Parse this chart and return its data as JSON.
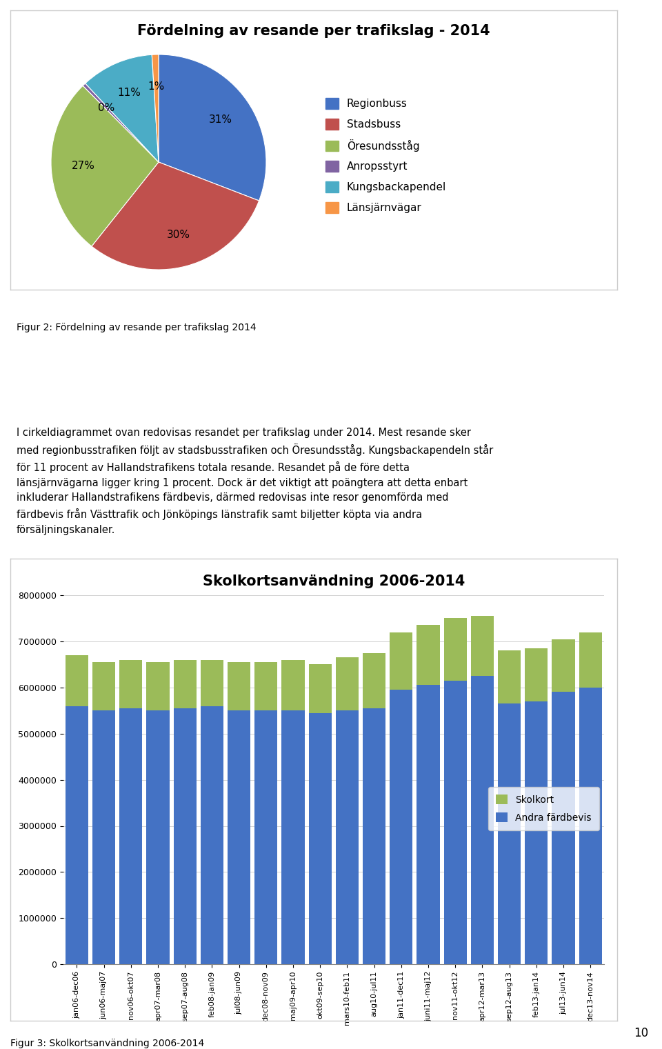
{
  "pie_title": "Fördelning av resande per trafikslag - 2014",
  "pie_labels": [
    "Regionbuss",
    "Stadsbuss",
    "Öresundsståg",
    "Anropsstyrt",
    "Kungsbackapendel",
    "Länsjärnvägar"
  ],
  "pie_sizes": [
    31,
    30,
    27,
    0.5,
    11,
    1
  ],
  "pie_colors": [
    "#4472C4",
    "#C0504D",
    "#9BBB59",
    "#8064A2",
    "#4BACC6",
    "#F79646"
  ],
  "figur2_caption": "Figur 2: Fördelning av resande per trafikslag 2014",
  "body_text_lines": [
    "I cirkeldiagrammet ovan redovisas resandet per trafikslag under 2014. Mest resande sker",
    "med regionbusstrafiken följt av stadsbusstrafiken och Öresundsståg. Kungsbackapendeln står",
    "för 11 procent av Hallandstrafikens totala resande. Resandet på de före detta",
    "länsjärnvägarna ligger kring 1 procent. Dock är det viktigt att poängtera att detta enbart",
    "inkluderar Hallandstrafikens färdbevis, därmed redovisas inte resor genomförda med",
    "färdbevis från Västtrafik och Jönköpings länstrafik samt biljetter köpta via andra",
    "försäljningskanaler."
  ],
  "bar_title": "Skolkortsanvändning 2006-2014",
  "bar_categories": [
    "jan06-dec06",
    "jun06-maj07",
    "nov06-okt07",
    "apr07-mar08",
    "sep07-aug08",
    "feb08-jan09",
    "jul08-jun09",
    "dec08-nov09",
    "maj09-apr10",
    "okt09-sep10",
    "mars10-feb11",
    "aug10-jul11",
    "jan11-dec11",
    "juni11-maj12",
    "nov11-okt12",
    "apr12-mar13",
    "sep12-aug13",
    "feb13-jan14",
    "jul13-jun14",
    "dec13-nov14"
  ],
  "bar_skolkort": [
    1100000,
    1050000,
    1050000,
    1050000,
    1050000,
    1000000,
    1050000,
    1050000,
    1100000,
    1050000,
    1150000,
    1200000,
    1250000,
    1300000,
    1350000,
    1300000,
    1150000,
    1150000,
    1150000,
    1200000
  ],
  "bar_andra": [
    5600000,
    5500000,
    5550000,
    5500000,
    5550000,
    5600000,
    5500000,
    5500000,
    5500000,
    5450000,
    5500000,
    5550000,
    5950000,
    6050000,
    6150000,
    6250000,
    5650000,
    5700000,
    5900000,
    6000000
  ],
  "bar_color_skolkort": "#9BBB59",
  "bar_color_andra": "#4472C4",
  "bar_ylim": [
    0,
    8000000
  ],
  "bar_yticks": [
    0,
    1000000,
    2000000,
    3000000,
    4000000,
    5000000,
    6000000,
    7000000,
    8000000
  ],
  "figur3_caption": "Figur 3: Skolkortsanvändning 2006-2014",
  "page_number": "10",
  "background_color": "#FFFFFF",
  "border_color": "#CCCCCC"
}
